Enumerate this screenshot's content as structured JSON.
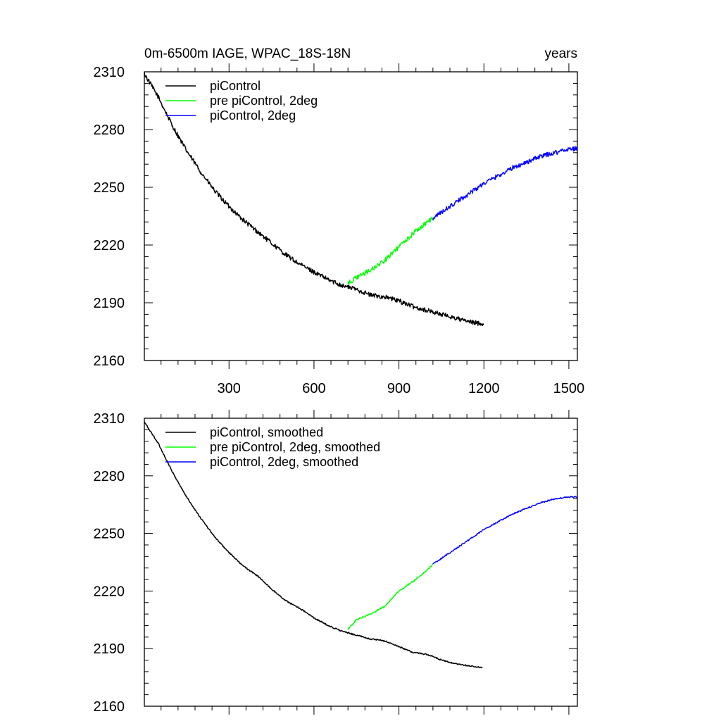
{
  "title_left": "0m-6500m IAGE, WPAC_18S-18N",
  "title_right": "years",
  "colors": {
    "piControl": "#000000",
    "pre": "#00ff00",
    "twodeg": "#0000ff"
  },
  "chart_data": [
    {
      "type": "line",
      "xlim": [
        1,
        1530
      ],
      "ylim": [
        2160,
        2310
      ],
      "xticks": [
        300,
        600,
        900,
        1200,
        1500
      ],
      "yticks": [
        2160,
        2190,
        2220,
        2250,
        2280,
        2310
      ],
      "show_xtick_labels": true,
      "legend_position": "top-left",
      "series": [
        {
          "name": "piControl",
          "color": "#000000",
          "x_start": 1,
          "x_end": 1200,
          "noise": 1.2,
          "points": [
            [
              1,
              2309
            ],
            [
              50,
              2297
            ],
            [
              100,
              2282
            ],
            [
              150,
              2269
            ],
            [
              200,
              2258
            ],
            [
              250,
              2248
            ],
            [
              300,
              2240
            ],
            [
              350,
              2233
            ],
            [
              400,
              2227
            ],
            [
              450,
              2221
            ],
            [
              500,
              2215
            ],
            [
              550,
              2210
            ],
            [
              600,
              2206
            ],
            [
              650,
              2202
            ],
            [
              700,
              2199
            ],
            [
              750,
              2197
            ],
            [
              800,
              2194
            ],
            [
              850,
              2193
            ],
            [
              900,
              2191
            ],
            [
              950,
              2188
            ],
            [
              1000,
              2186
            ],
            [
              1050,
              2184
            ],
            [
              1100,
              2182
            ],
            [
              1150,
              2180
            ],
            [
              1200,
              2179
            ]
          ]
        },
        {
          "name": "pre piControl, 2deg",
          "color": "#00ff00",
          "x_start": 720,
          "x_end": 1020,
          "noise": 1.2,
          "points": [
            [
              720,
              2200
            ],
            [
              750,
              2203
            ],
            [
              800,
              2207
            ],
            [
              850,
              2212
            ],
            [
              900,
              2219
            ],
            [
              950,
              2226
            ],
            [
              1000,
              2232
            ],
            [
              1020,
              2234
            ]
          ]
        },
        {
          "name": "piControl, 2deg",
          "color": "#0000ff",
          "x_start": 1020,
          "x_end": 1530,
          "noise": 1.2,
          "points": [
            [
              1020,
              2234
            ],
            [
              1050,
              2237
            ],
            [
              1100,
              2242
            ],
            [
              1150,
              2247
            ],
            [
              1200,
              2252
            ],
            [
              1250,
              2256
            ],
            [
              1300,
              2260
            ],
            [
              1350,
              2263
            ],
            [
              1400,
              2266
            ],
            [
              1450,
              2268
            ],
            [
              1500,
              2270
            ],
            [
              1530,
              2270
            ]
          ]
        }
      ]
    },
    {
      "type": "line",
      "xlim": [
        1,
        1530
      ],
      "ylim": [
        2160,
        2310
      ],
      "xticks": [
        300,
        600,
        900,
        1200,
        1500
      ],
      "yticks": [
        2160,
        2190,
        2220,
        2250,
        2280,
        2310
      ],
      "show_xtick_labels": false,
      "legend_position": "top-left",
      "series": [
        {
          "name": "piControl, smoothed",
          "color": "#000000",
          "x_start": 1,
          "x_end": 1195,
          "noise": 0.35,
          "points": [
            [
              1,
              2308
            ],
            [
              50,
              2297
            ],
            [
              100,
              2282
            ],
            [
              150,
              2269
            ],
            [
              200,
              2258
            ],
            [
              250,
              2248
            ],
            [
              300,
              2240
            ],
            [
              350,
              2233
            ],
            [
              400,
              2228
            ],
            [
              450,
              2221
            ],
            [
              500,
              2215
            ],
            [
              550,
              2211
            ],
            [
              600,
              2206
            ],
            [
              650,
              2202
            ],
            [
              700,
              2199
            ],
            [
              750,
              2197
            ],
            [
              800,
              2195
            ],
            [
              850,
              2194
            ],
            [
              900,
              2191
            ],
            [
              950,
              2188
            ],
            [
              1000,
              2187
            ],
            [
              1050,
              2184
            ],
            [
              1100,
              2182
            ],
            [
              1150,
              2181
            ],
            [
              1195,
              2180
            ]
          ]
        },
        {
          "name": "pre piControl, 2deg, smoothed",
          "color": "#00ff00",
          "x_start": 720,
          "x_end": 1020,
          "noise": 0.35,
          "points": [
            [
              720,
              2200
            ],
            [
              750,
              2205
            ],
            [
              800,
              2208
            ],
            [
              850,
              2212
            ],
            [
              900,
              2220
            ],
            [
              950,
              2225
            ],
            [
              1000,
              2231
            ],
            [
              1020,
              2234
            ]
          ]
        },
        {
          "name": "piControl, 2deg, smoothed",
          "color": "#0000ff",
          "x_start": 1020,
          "x_end": 1530,
          "noise": 0.35,
          "points": [
            [
              1020,
              2234
            ],
            [
              1050,
              2237
            ],
            [
              1100,
              2242
            ],
            [
              1150,
              2247
            ],
            [
              1200,
              2252
            ],
            [
              1250,
              2256
            ],
            [
              1300,
              2260
            ],
            [
              1350,
              2263
            ],
            [
              1400,
              2266
            ],
            [
              1450,
              2268
            ],
            [
              1500,
              2269
            ],
            [
              1530,
              2269
            ]
          ]
        }
      ]
    }
  ]
}
